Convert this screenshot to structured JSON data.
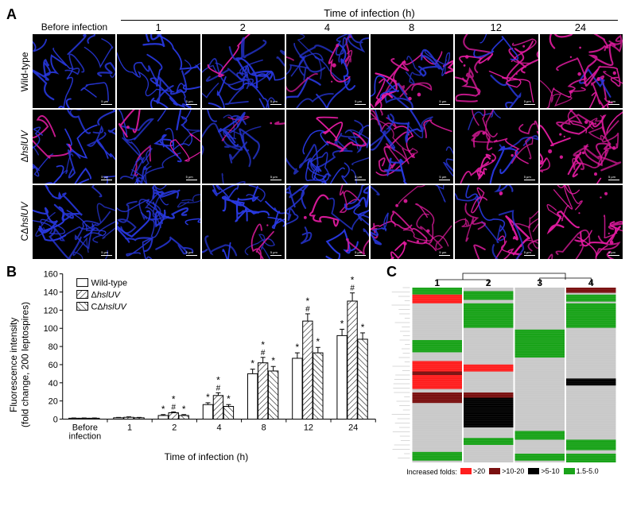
{
  "panelA": {
    "label": "A",
    "before_label": "Before infection",
    "time_header": "Time of infection (h)",
    "time_points": [
      "1",
      "2",
      "4",
      "8",
      "12",
      "24"
    ],
    "row_labels_plain": [
      "Wild-type",
      "ΔhslUV",
      "CΔhslUV"
    ],
    "row_labels_html": [
      "Wild-type",
      "Δ<span class=\"italic\">hslUV</span>",
      "CΔ<span class=\"italic\">hslUV</span>"
    ],
    "scalebar_text": "5 μm",
    "colors": {
      "blue": "#2838e0",
      "magenta": "#e21ba0",
      "bg": "#000000"
    },
    "red_fraction_by_col": [
      0.02,
      0.05,
      0.12,
      0.25,
      0.45,
      0.65,
      0.85
    ]
  },
  "panelB": {
    "label": "B",
    "type": "grouped-bar",
    "y_label_line1": "Fluorescence intensity",
    "y_label_line2": "(fold change, 200 leptospires)",
    "x_label": "Time of infection (h)",
    "x_categories": [
      "Before\ninfection",
      "1",
      "2",
      "4",
      "8",
      "12",
      "24"
    ],
    "series": [
      {
        "name": "Wild-type",
        "pattern": "open",
        "values": [
          1,
          1.5,
          4,
          16,
          50,
          67,
          92
        ],
        "err": [
          0.3,
          0.4,
          1,
          2,
          5,
          6,
          7
        ]
      },
      {
        "name": "ΔhslUV",
        "pattern": "diag-r",
        "values": [
          1,
          2,
          7,
          26,
          62,
          108,
          130
        ],
        "err": [
          0.3,
          0.5,
          1,
          3,
          6,
          8,
          9
        ]
      },
      {
        "name": "CΔhslUV",
        "pattern": "diag-l",
        "values": [
          1,
          1.5,
          4,
          14,
          53,
          73,
          88
        ],
        "err": [
          0.3,
          0.4,
          1,
          2,
          5,
          6,
          7
        ]
      }
    ],
    "ylim": [
      0,
      160
    ],
    "ytick_step": 20,
    "bar_fill": "#ffffff",
    "bar_stroke": "#000000",
    "tick_fontsize": 11,
    "label_fontsize": 12,
    "markers": {
      "star": "*",
      "hash": "#"
    },
    "star_from_col": 2,
    "hash_series_index": 1
  },
  "panelC": {
    "label": "C",
    "type": "heatmap",
    "column_labels": [
      "1",
      "2",
      "3",
      "4"
    ],
    "legend_title": "Increased folds:",
    "legend_items": [
      {
        "label": ">20",
        "color": "#ff1e1e"
      },
      {
        "label": ">10-20",
        "color": "#7a1010"
      },
      {
        "label": ">5-10",
        "color": "#000000"
      },
      {
        "label": "1.5-5.0",
        "color": "#19a319"
      }
    ],
    "bg_color": "#c9c9c9",
    "columns": [
      [
        {
          "s": 0.0,
          "e": 0.04,
          "c": "#19a319"
        },
        {
          "s": 0.04,
          "e": 0.09,
          "c": "#ff1e1e"
        },
        {
          "s": 0.3,
          "e": 0.37,
          "c": "#19a319"
        },
        {
          "s": 0.42,
          "e": 0.58,
          "c": "#ff1e1e"
        },
        {
          "s": 0.48,
          "e": 0.5,
          "c": "#7a1010"
        },
        {
          "s": 0.6,
          "e": 0.66,
          "c": "#7a1010"
        },
        {
          "s": 0.94,
          "e": 0.99,
          "c": "#19a319"
        }
      ],
      [
        {
          "s": 0.02,
          "e": 0.07,
          "c": "#19a319"
        },
        {
          "s": 0.09,
          "e": 0.23,
          "c": "#19a319"
        },
        {
          "s": 0.44,
          "e": 0.48,
          "c": "#ff1e1e"
        },
        {
          "s": 0.6,
          "e": 0.8,
          "c": "#000000"
        },
        {
          "s": 0.6,
          "e": 0.63,
          "c": "#7a1010"
        },
        {
          "s": 0.86,
          "e": 0.9,
          "c": "#19a319"
        }
      ],
      [
        {
          "s": 0.24,
          "e": 0.4,
          "c": "#19a319"
        },
        {
          "s": 0.82,
          "e": 0.87,
          "c": "#19a319"
        },
        {
          "s": 0.95,
          "e": 0.99,
          "c": "#19a319"
        }
      ],
      [
        {
          "s": 0.0,
          "e": 0.03,
          "c": "#7a1010"
        },
        {
          "s": 0.04,
          "e": 0.08,
          "c": "#19a319"
        },
        {
          "s": 0.09,
          "e": 0.23,
          "c": "#19a319"
        },
        {
          "s": 0.52,
          "e": 0.56,
          "c": "#000000"
        },
        {
          "s": 0.87,
          "e": 0.93,
          "c": "#19a319"
        },
        {
          "s": 0.95,
          "e": 1.0,
          "c": "#19a319"
        }
      ]
    ]
  }
}
